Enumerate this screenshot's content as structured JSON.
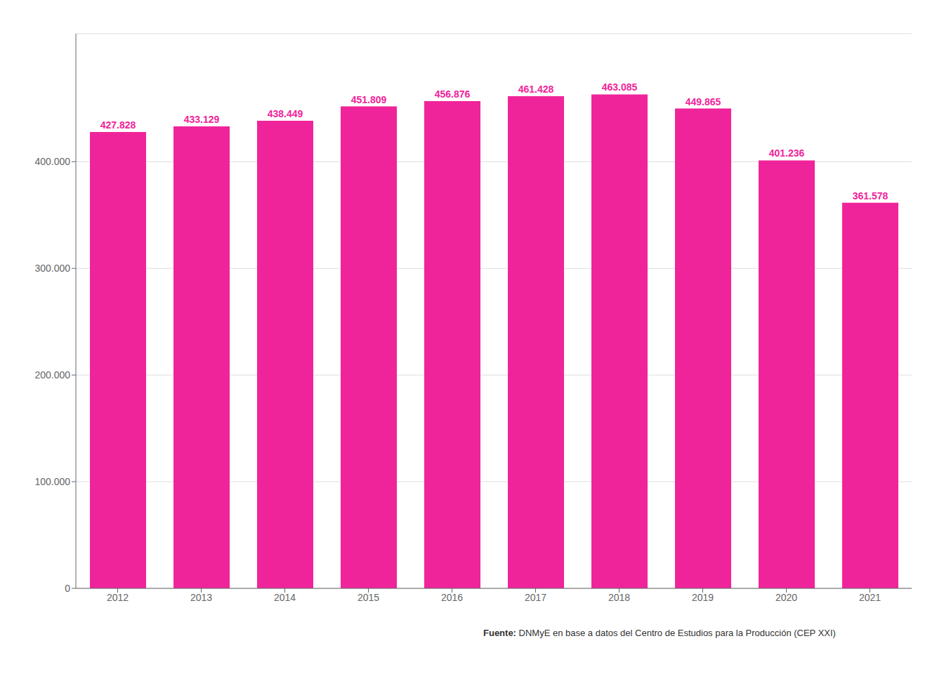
{
  "chart_data": {
    "type": "bar",
    "categories": [
      "2012",
      "2013",
      "2014",
      "2015",
      "2016",
      "2017",
      "2018",
      "2019",
      "2020",
      "2021"
    ],
    "values": [
      427828,
      433129,
      438449,
      451809,
      456876,
      461428,
      463085,
      449865,
      401236,
      361578
    ],
    "value_labels": [
      "427.828",
      "433.129",
      "438.449",
      "451.809",
      "456.876",
      "461.428",
      "463.085",
      "449.865",
      "401.236",
      "361.578"
    ],
    "data_labels": true,
    "color": "#F0249A",
    "ylim": [
      0,
      520000
    ],
    "yticks": [
      0,
      {
        "value": 100000,
        "label": "100.000"
      },
      {
        "value": 200000,
        "label": "200.000"
      },
      {
        "value": 300000,
        "label": "300.000"
      },
      {
        "value": 400000,
        "label": "400.000"
      }
    ],
    "grid": true,
    "annotations": [
      "Fuente:",
      " DNMyE en base a datos del Centro de Estudios para la Producción (CEP XXI)"
    ]
  }
}
